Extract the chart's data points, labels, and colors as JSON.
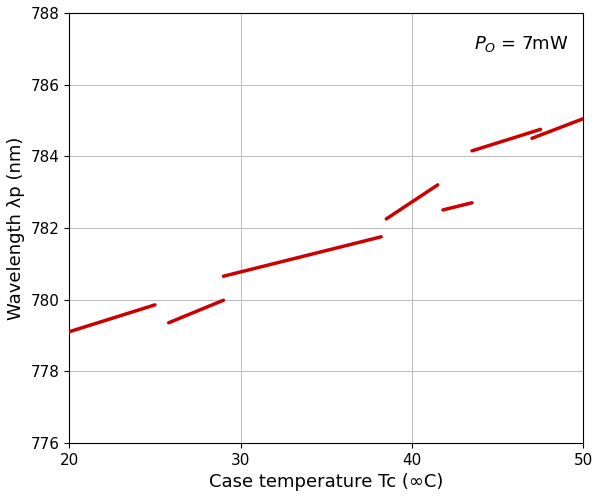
{
  "xlabel": "Case temperature Tc (∞C)",
  "ylabel": "Wavelength λp (nm)",
  "xlim": [
    20,
    50
  ],
  "ylim": [
    776,
    788
  ],
  "xticks": [
    20,
    30,
    40,
    50
  ],
  "yticks": [
    776,
    778,
    780,
    782,
    784,
    786,
    788
  ],
  "line_color": "#cc0000",
  "line_width": 2.5,
  "segments": [
    [
      [
        20.0,
        779.1
      ],
      [
        25.0,
        779.85
      ]
    ],
    [
      [
        25.8,
        779.35
      ],
      [
        29.0,
        779.98
      ]
    ],
    [
      [
        29.0,
        780.65
      ],
      [
        38.2,
        781.75
      ]
    ],
    [
      [
        38.5,
        782.25
      ],
      [
        41.5,
        783.2
      ]
    ],
    [
      [
        41.8,
        782.5
      ],
      [
        43.5,
        782.7
      ]
    ],
    [
      [
        43.5,
        784.15
      ],
      [
        47.5,
        784.75
      ]
    ],
    [
      [
        47.0,
        784.5
      ],
      [
        50.0,
        785.05
      ]
    ]
  ],
  "background_color": "#ffffff",
  "grid_color": "#bbbbbb",
  "grid_linewidth": 0.7,
  "tick_fontsize": 11,
  "label_fontsize": 13,
  "annotation_fontsize": 13
}
